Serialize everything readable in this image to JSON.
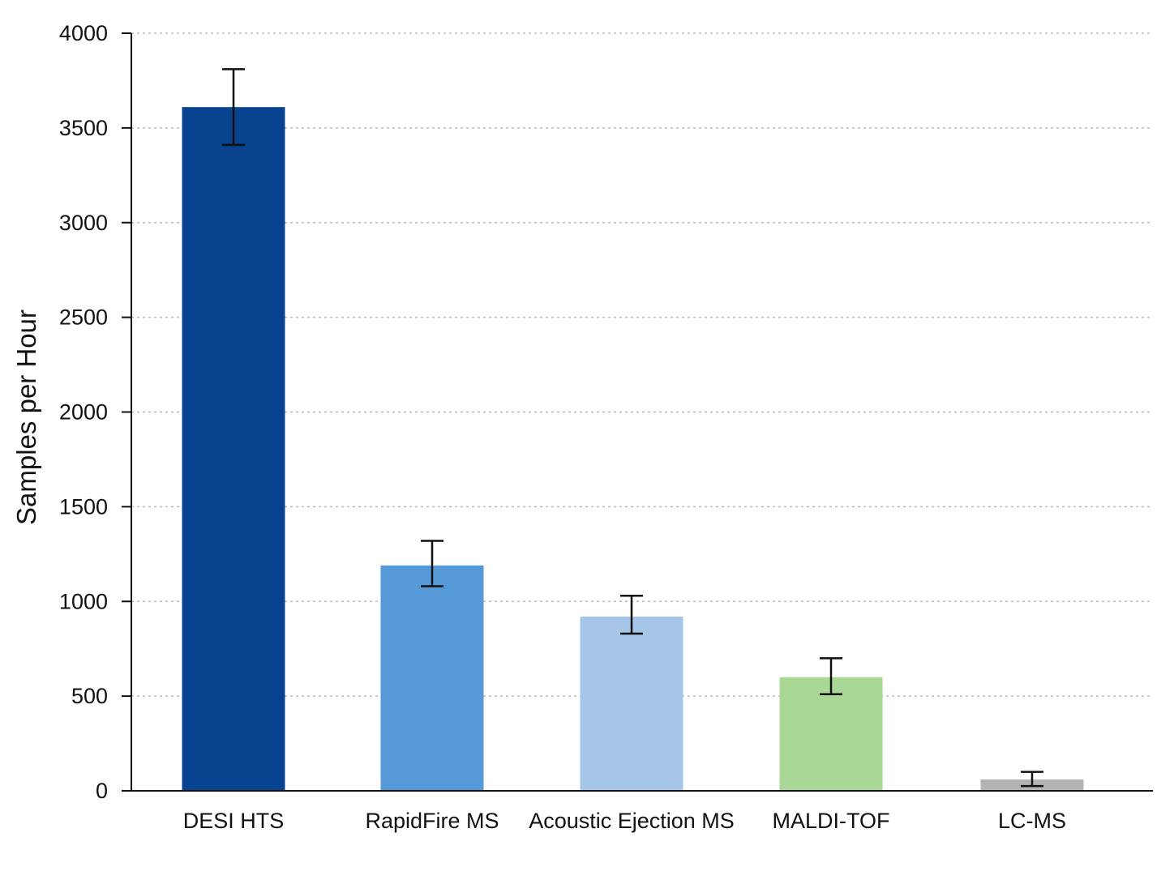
{
  "chart_data": {
    "type": "bar",
    "title": "",
    "xlabel": "",
    "ylabel": "Samples per Hour",
    "ylim": [
      0,
      4000
    ],
    "yticks": [
      0,
      500,
      1000,
      1500,
      2000,
      2500,
      3000,
      3500,
      4000
    ],
    "ytick_labels": [
      "0",
      "500",
      "1000",
      "1500",
      "2000",
      "2500",
      "3000",
      "3500",
      "4000"
    ],
    "grid": "horizontal-dotted",
    "legend": "none",
    "categories": [
      "DESI HTS",
      "RapidFire MS",
      "Acoustic Ejection MS",
      "MALDI-TOF",
      "LC-MS"
    ],
    "values": [
      3610,
      1190,
      920,
      600,
      60
    ],
    "error_low": [
      3410,
      1080,
      830,
      510,
      25
    ],
    "error_high": [
      3810,
      1320,
      1030,
      700,
      100
    ],
    "colors": [
      "#08438f",
      "#5599d6",
      "#a5c5e9",
      "#a9d896",
      "#b3b3b3"
    ]
  }
}
